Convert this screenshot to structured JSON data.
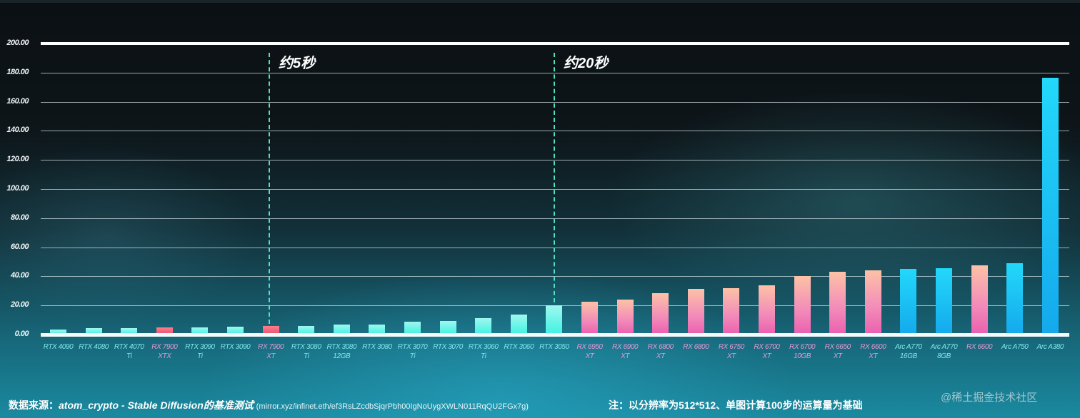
{
  "chart_data": {
    "type": "bar",
    "title": "",
    "xlabel": "",
    "ylabel": "",
    "ylim": [
      0,
      200
    ],
    "yticks": [
      "0.00",
      "20.00",
      "40.00",
      "60.00",
      "80.00",
      "100.00",
      "120.00",
      "140.00",
      "160.00",
      "180.00",
      "200.00"
    ],
    "grid": true,
    "categories": [
      "RTX 4090",
      "RTX 4080",
      "RTX 4070 Ti",
      "RX 7900 XTX",
      "RTX 3090 Ti",
      "RTX 3090",
      "RX 7900 XT",
      "RTX 3080 Ti",
      "RTX 3080 12GB",
      "RTX 3080",
      "RTX 3070 Ti",
      "RTX 3070",
      "RTX 3060 Ti",
      "RTX 3060",
      "RTX 3050",
      "RX 6950 XT",
      "RX 6900 XT",
      "RX 6800 XT",
      "RX 6800",
      "RX 6750 XT",
      "RX 6700 XT",
      "RX 6700 10GB",
      "RX 6650 XT",
      "RX 6600 XT",
      "Arc A770 16GB",
      "Arc A770 8GB",
      "RX 6600",
      "Arc A750",
      "Arc A380"
    ],
    "labels": [
      [
        "RTX 4090"
      ],
      [
        "RTX 4080"
      ],
      [
        "RTX 4070",
        "Ti"
      ],
      [
        "RX 7900",
        "XTX"
      ],
      [
        "RTX 3090",
        "Ti"
      ],
      [
        "RTX 3090"
      ],
      [
        "RX 7900",
        "XT"
      ],
      [
        "RTX 3080",
        "Ti"
      ],
      [
        "RTX 3080",
        "12GB"
      ],
      [
        "RTX 3080"
      ],
      [
        "RTX 3070",
        "Ti"
      ],
      [
        "RTX 3070"
      ],
      [
        "RTX 3060",
        "Ti"
      ],
      [
        "RTX 3060"
      ],
      [
        "RTX 3050"
      ],
      [
        "RX 6950",
        "XT"
      ],
      [
        "RX 6900",
        "XT"
      ],
      [
        "RX 6800",
        "XT"
      ],
      [
        "RX 6800"
      ],
      [
        "RX 6750",
        "XT"
      ],
      [
        "RX 6700",
        "XT"
      ],
      [
        "RX 6700",
        "10GB"
      ],
      [
        "RX 6650",
        "XT"
      ],
      [
        "RX 6600",
        "XT"
      ],
      [
        "Arc A770",
        "16GB"
      ],
      [
        "Arc A770",
        "8GB"
      ],
      [
        "RX 6600"
      ],
      [
        "Arc A750"
      ],
      [
        "Arc A380"
      ]
    ],
    "vendors": [
      "nv",
      "nv",
      "nv",
      "amd-old",
      "nv",
      "nv",
      "amd-old",
      "nv",
      "nv",
      "nv",
      "nv",
      "nv",
      "nv",
      "nv",
      "nv",
      "amd",
      "amd",
      "amd",
      "amd",
      "amd",
      "amd",
      "amd",
      "amd",
      "amd",
      "intel",
      "intel",
      "amd",
      "intel",
      "intel"
    ],
    "values": [
      3.4,
      4.2,
      4.6,
      5.0,
      5.0,
      5.5,
      5.7,
      5.8,
      6.9,
      7.0,
      8.7,
      9.2,
      11.1,
      13.8,
      20.1,
      22.7,
      23.8,
      28.2,
      31.2,
      32.0,
      33.8,
      40.4,
      43.0,
      44.0,
      45.0,
      45.6,
      47.5,
      49.2,
      176.5
    ],
    "colors": {
      "nvidia": "#3ff2e0",
      "amd": "#f28ab9",
      "amd_highlight": "#e8506e",
      "intel": "#14a9ec"
    },
    "annotations": [
      {
        "text": "约5秒",
        "after_category": "RX 7900 XT"
      },
      {
        "text": "约20秒",
        "after_category": "RTX 3050"
      }
    ]
  },
  "footer": {
    "source_prefix": "数据来源：",
    "source_name": "atom_crypto - Stable Diffusion的基准测试",
    "source_url": "(mirror.xyz/infinet.eth/ef3RsLZcdbSjqrPbh00IgNoUygXWLN011RqQU2FGx7g)",
    "note": "注：以分辨率为512*512、单图计算100步的运算量为基础"
  },
  "watermark": "@稀土掘金技术社区"
}
